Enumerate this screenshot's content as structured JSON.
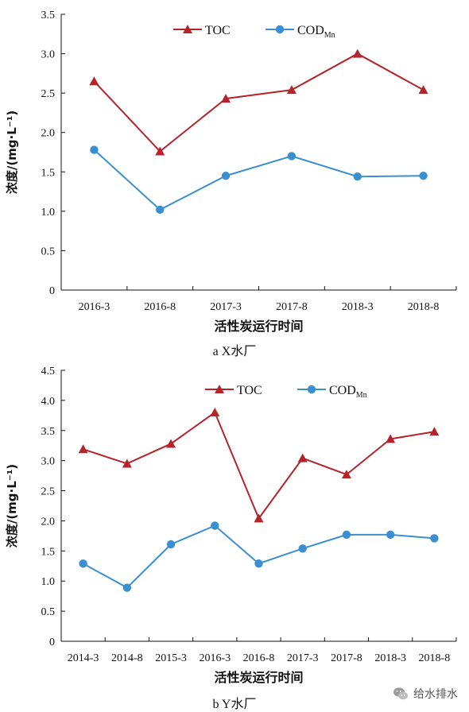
{
  "chart_data": [
    {
      "type": "line",
      "categories": [
        "2016-3",
        "2016-8",
        "2017-3",
        "2017-8",
        "2018-3",
        "2018-8"
      ],
      "series": [
        {
          "name": "TOC",
          "name_sub": "",
          "values": [
            2.65,
            1.76,
            2.43,
            2.54,
            3.0,
            2.54
          ],
          "color": "#b5232b",
          "marker": "triangle"
        },
        {
          "name": "COD",
          "name_sub": "Mn",
          "values": [
            1.78,
            1.02,
            1.45,
            1.7,
            1.44,
            1.45
          ],
          "color": "#3a8fd0",
          "marker": "circle"
        }
      ],
      "xlabel": "活性炭运行时间",
      "ylabel": "浓度/(mg·L⁻¹)",
      "ylim": [
        0,
        3.5
      ],
      "yticks": [
        "0",
        "0.5",
        "1.0",
        "1.5",
        "2.0",
        "2.5",
        "3.0",
        "3.5"
      ],
      "grid": false,
      "legend": "top-center",
      "caption": "a X水厂"
    },
    {
      "type": "line",
      "categories": [
        "2014-3",
        "2014-8",
        "2015-3",
        "2016-3",
        "2016-8",
        "2017-3",
        "2017-8",
        "2018-3",
        "2018-8"
      ],
      "series": [
        {
          "name": "TOC",
          "name_sub": "",
          "values": [
            3.19,
            2.95,
            3.28,
            3.8,
            2.04,
            3.04,
            2.77,
            3.36,
            3.48
          ],
          "color": "#b5232b",
          "marker": "triangle"
        },
        {
          "name": "COD",
          "name_sub": "Mn",
          "values": [
            1.29,
            0.89,
            1.61,
            1.92,
            1.29,
            1.54,
            1.77,
            1.77,
            1.71
          ],
          "color": "#3a8fd0",
          "marker": "circle"
        }
      ],
      "xlabel": "活性炭运行时间",
      "ylabel": "浓度/(mg·L⁻¹)",
      "ylim": [
        0,
        4.5
      ],
      "yticks": [
        "0",
        "0.5",
        "1.0",
        "1.5",
        "2.0",
        "2.5",
        "3.0",
        "3.5",
        "4.0",
        "4.5"
      ],
      "grid": false,
      "legend": "top-center",
      "caption": "b Y水厂"
    }
  ],
  "watermark": {
    "text": "给水排水",
    "icon": "wechat-icon"
  }
}
